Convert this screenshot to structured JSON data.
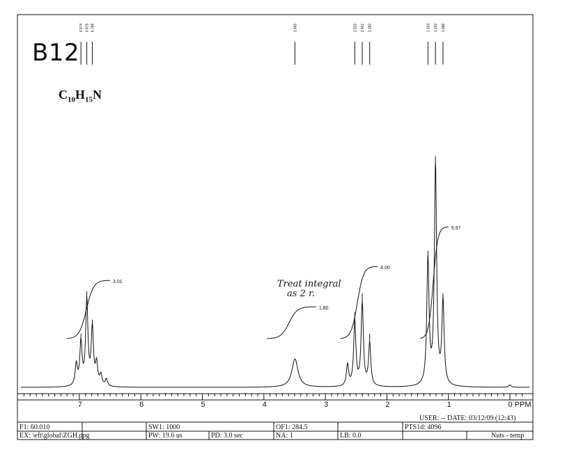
{
  "sample": {
    "label": "B12",
    "formula_parts": [
      "C",
      "10",
      "H",
      "15",
      "N"
    ]
  },
  "annotation": {
    "line1": "Treat integral",
    "line2": "as 2 r."
  },
  "chart_data": {
    "type": "line",
    "title": "",
    "xlabel": "",
    "ylabel": "",
    "x_unit": "PPM",
    "xlim": [
      7.9,
      -0.25
    ],
    "x_reversed": true,
    "x_ticks": [
      {
        "value": 7,
        "label": "7"
      },
      {
        "value": 6,
        "label": "6"
      },
      {
        "value": 5,
        "label": "5"
      },
      {
        "value": 4,
        "label": "4"
      },
      {
        "value": 3,
        "label": "3"
      },
      {
        "value": 2,
        "label": "2"
      },
      {
        "value": 1,
        "label": "1"
      },
      {
        "value": 0,
        "label": "0 PPM"
      }
    ],
    "peak_labels": [
      "6.974",
      "6.879",
      "6.789",
      "3.495",
      "2.522",
      "2.401",
      "2.280",
      "1.333",
      "1.210",
      "1.088"
    ],
    "peak_label_positions": [
      6.974,
      6.879,
      6.789,
      3.495,
      2.522,
      2.401,
      2.28,
      1.333,
      1.21,
      1.088
    ],
    "peaks": [
      {
        "ppm": 7.05,
        "height": 0.09
      },
      {
        "ppm": 6.974,
        "height": 0.18
      },
      {
        "ppm": 6.879,
        "height": 0.36
      },
      {
        "ppm": 6.789,
        "height": 0.24
      },
      {
        "ppm": 6.72,
        "height": 0.09
      },
      {
        "ppm": 6.65,
        "height": 0.045
      },
      {
        "ppm": 6.56,
        "height": 0.03
      },
      {
        "ppm": 3.495,
        "height": 0.12
      },
      {
        "ppm": 2.64,
        "height": 0.09
      },
      {
        "ppm": 2.522,
        "height": 0.27
      },
      {
        "ppm": 2.401,
        "height": 0.35
      },
      {
        "ppm": 2.28,
        "height": 0.18
      },
      {
        "ppm": 1.333,
        "height": 0.53
      },
      {
        "ppm": 1.21,
        "height": 0.93
      },
      {
        "ppm": 1.088,
        "height": 0.35
      },
      {
        "ppm": 0.0,
        "height": 0.01
      }
    ],
    "integrals": [
      {
        "from": 7.2,
        "to": 6.5,
        "value": "3.01"
      },
      {
        "from": 3.95,
        "to": 3.15,
        "value": "1.80"
      },
      {
        "from": 2.75,
        "to": 2.15,
        "value": "4.00"
      },
      {
        "from": 1.45,
        "to": 1.0,
        "value": "5.97"
      }
    ]
  },
  "footer": {
    "user_date": "USER:  -- DATE: 03/12/09  (12:43)",
    "pts": "PTS1d: 4096",
    "f1": "F1: 60.010",
    "sw1": "SW1: 1000",
    "of1": "OF1: 284.5",
    "ex": "EX: \\eft\\global\\ZGH.ppg",
    "pw": "PW: 19.6 us",
    "pd": "PD: 3.0   sec",
    "na": "NA: 1",
    "lb": "LB: 0.0",
    "nuts": "Nuts - temp"
  }
}
